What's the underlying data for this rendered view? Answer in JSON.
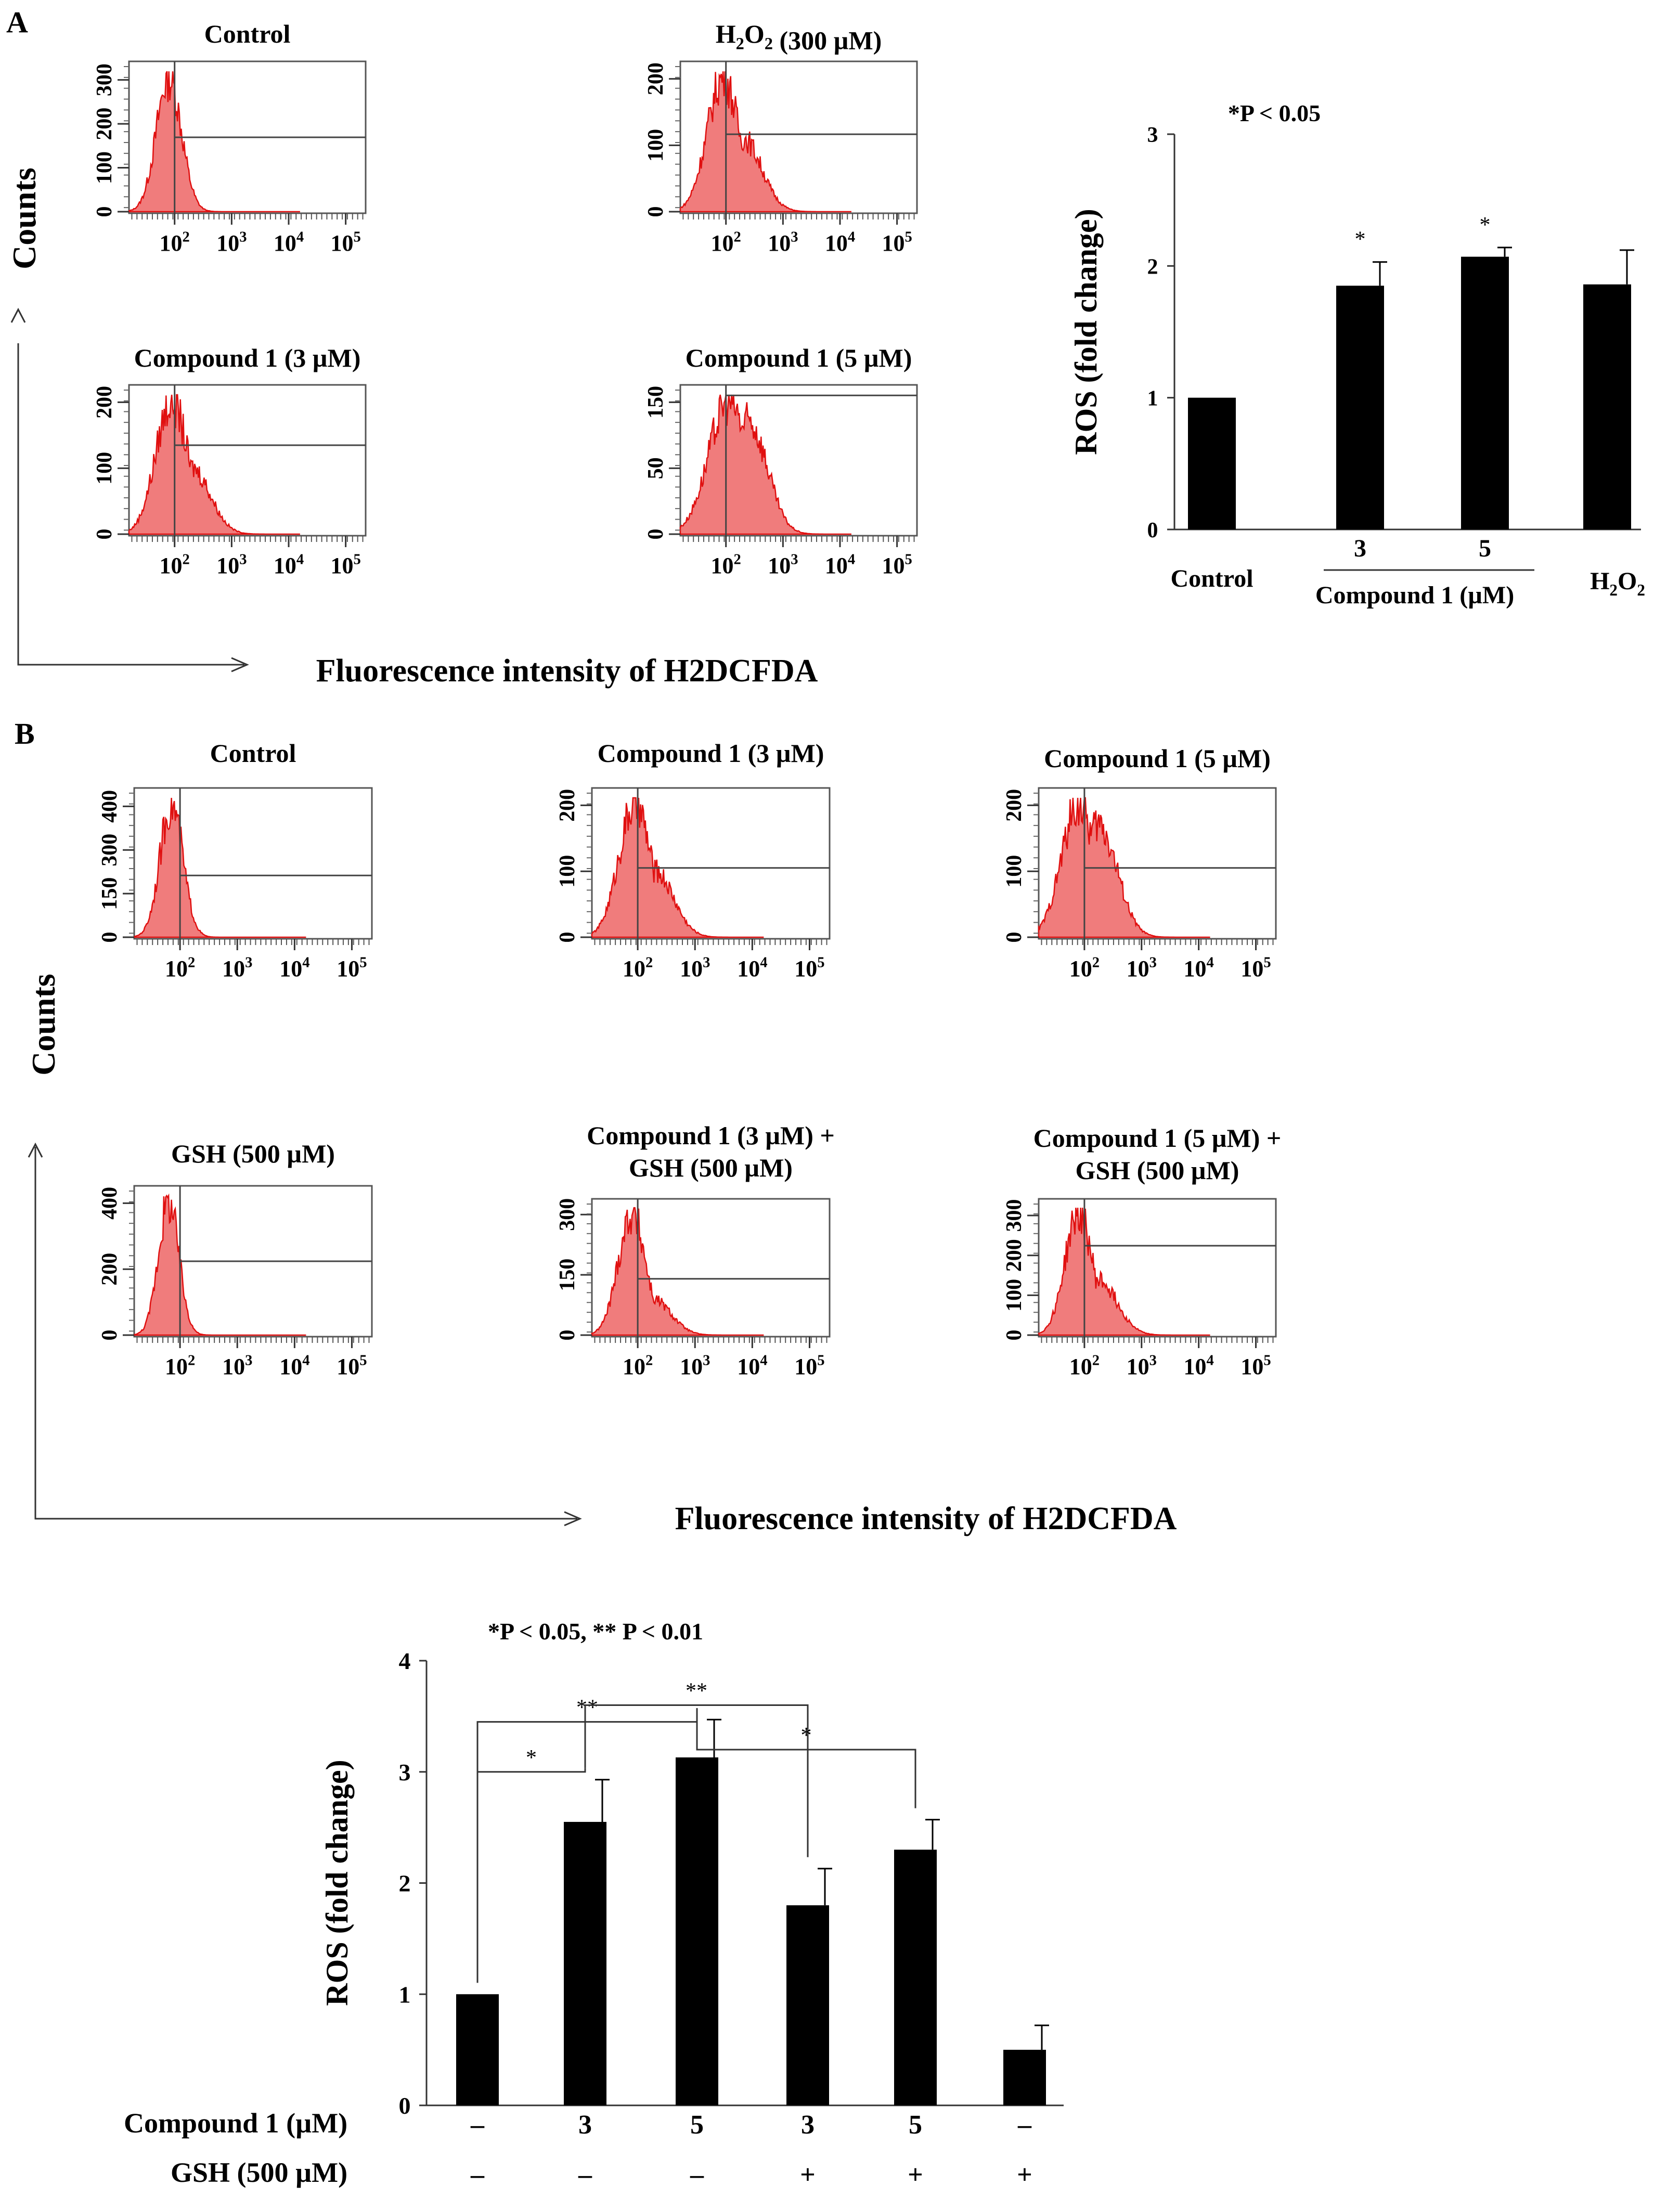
{
  "panel_labels": {
    "a": "A",
    "b": "B"
  },
  "histogram_axis": {
    "xticks": [
      "10^2",
      "10^3",
      "10^4",
      "10^5"
    ],
    "xlabel": "Fluorescence intensity of H2DCFDA",
    "ylabel": "Counts"
  },
  "colors": {
    "histogram_fill": "#f07c7c",
    "histogram_edge": "#e01010",
    "bar": "#000000"
  },
  "histograms": [
    {
      "panel": "A",
      "title": "Control",
      "yticks": [
        "0",
        "100",
        "200",
        "300"
      ],
      "peak_log": 1.9,
      "width": 0.22,
      "tail": 0.0,
      "gate_level": 0.5
    },
    {
      "panel": "A",
      "title": "H2O2 (300 µM)",
      "yticks": [
        "0",
        "100",
        "200"
      ],
      "peak_log": 1.95,
      "width": 0.28,
      "tail": 0.55,
      "gate_level": 0.52
    },
    {
      "panel": "A",
      "title": "Compound 1 (3 µM)",
      "yticks": [
        "0",
        "100",
        "200"
      ],
      "peak_log": 1.95,
      "width": 0.28,
      "tail": 0.5,
      "gate_level": 0.6
    },
    {
      "panel": "A",
      "title": "Compound 1 (5 µM)",
      "yticks": [
        "0",
        "50",
        "150"
      ],
      "peak_log": 2.05,
      "width": 0.35,
      "tail": 0.85,
      "gate_level": 0.93
    },
    {
      "panel": "B",
      "title": "Control",
      "yticks": [
        "0",
        "150",
        "300",
        "400"
      ],
      "peak_log": 1.85,
      "width": 0.2,
      "tail": 0.0,
      "gate_level": 0.42
    },
    {
      "panel": "B",
      "title": "Compound 1 (3 µM)",
      "yticks": [
        "0",
        "100",
        "200"
      ],
      "peak_log": 1.95,
      "width": 0.28,
      "tail": 0.5,
      "gate_level": 0.47
    },
    {
      "panel": "B",
      "title": "Compound 1 (5 µM)",
      "yticks": [
        "0",
        "100",
        "200"
      ],
      "peak_log": 1.9,
      "width": 0.3,
      "tail": 0.85,
      "gate_level": 0.47
    },
    {
      "panel": "B",
      "title": "GSH (500 µM)",
      "yticks": [
        "0",
        "200",
        "400"
      ],
      "peak_log": 1.8,
      "width": 0.18,
      "tail": 0.0,
      "gate_level": 0.5
    },
    {
      "panel": "B",
      "title": "Compound 1 (3 µM) +",
      "title2": "GSH (500 µM)",
      "yticks": [
        "0",
        "150",
        "300"
      ],
      "peak_log": 1.9,
      "width": 0.24,
      "tail": 0.3,
      "gate_level": 0.42
    },
    {
      "panel": "B",
      "title": "Compound 1 (5 µM) +",
      "title2": "GSH (500 µM)",
      "yticks": [
        "0",
        "100",
        "200",
        "300"
      ],
      "peak_log": 1.9,
      "width": 0.24,
      "tail": 0.45,
      "gate_level": 0.66
    }
  ],
  "chart_data": [
    {
      "type": "bar",
      "title": "*P < 0.05",
      "xlabel": "",
      "ylabel": "ROS (fold change)",
      "categories": [
        "Control",
        "3",
        "5",
        "H2O2"
      ],
      "group_label": "Compound 1 (µM)",
      "values": [
        1.0,
        1.85,
        2.07,
        1.86
      ],
      "errors": [
        0.0,
        0.18,
        0.07,
        0.26
      ],
      "significance": [
        "",
        "*",
        "*",
        ""
      ],
      "ylim": [
        0,
        3
      ],
      "yticks": [
        0,
        1,
        2,
        3
      ]
    },
    {
      "type": "bar",
      "title": "*P < 0.05, ** P < 0.01",
      "xlabel": "",
      "ylabel": "ROS (fold change)",
      "row_labels": [
        "Compound 1 (µM)",
        "GSH (500 µM)"
      ],
      "compound_row": [
        "–",
        "3",
        "5",
        "3",
        "5",
        "–"
      ],
      "gsh_row": [
        "–",
        "–",
        "–",
        "+",
        "+",
        "+"
      ],
      "values": [
        1.0,
        2.55,
        3.13,
        1.8,
        2.3,
        0.5
      ],
      "errors": [
        0.0,
        0.38,
        0.34,
        0.33,
        0.27,
        0.22
      ],
      "ylim": [
        0,
        4
      ],
      "yticks": [
        0,
        1,
        2,
        3,
        4
      ],
      "comparisons": [
        {
          "from": 0,
          "to": 1,
          "label": "*",
          "y": 3.0
        },
        {
          "from": 0,
          "to": 2,
          "label": "**",
          "y": 3.45
        },
        {
          "from": 1,
          "to": 3,
          "label": "**",
          "y": 3.6
        },
        {
          "from": 2,
          "to": 4,
          "label": "*",
          "y": 3.2
        }
      ]
    }
  ]
}
